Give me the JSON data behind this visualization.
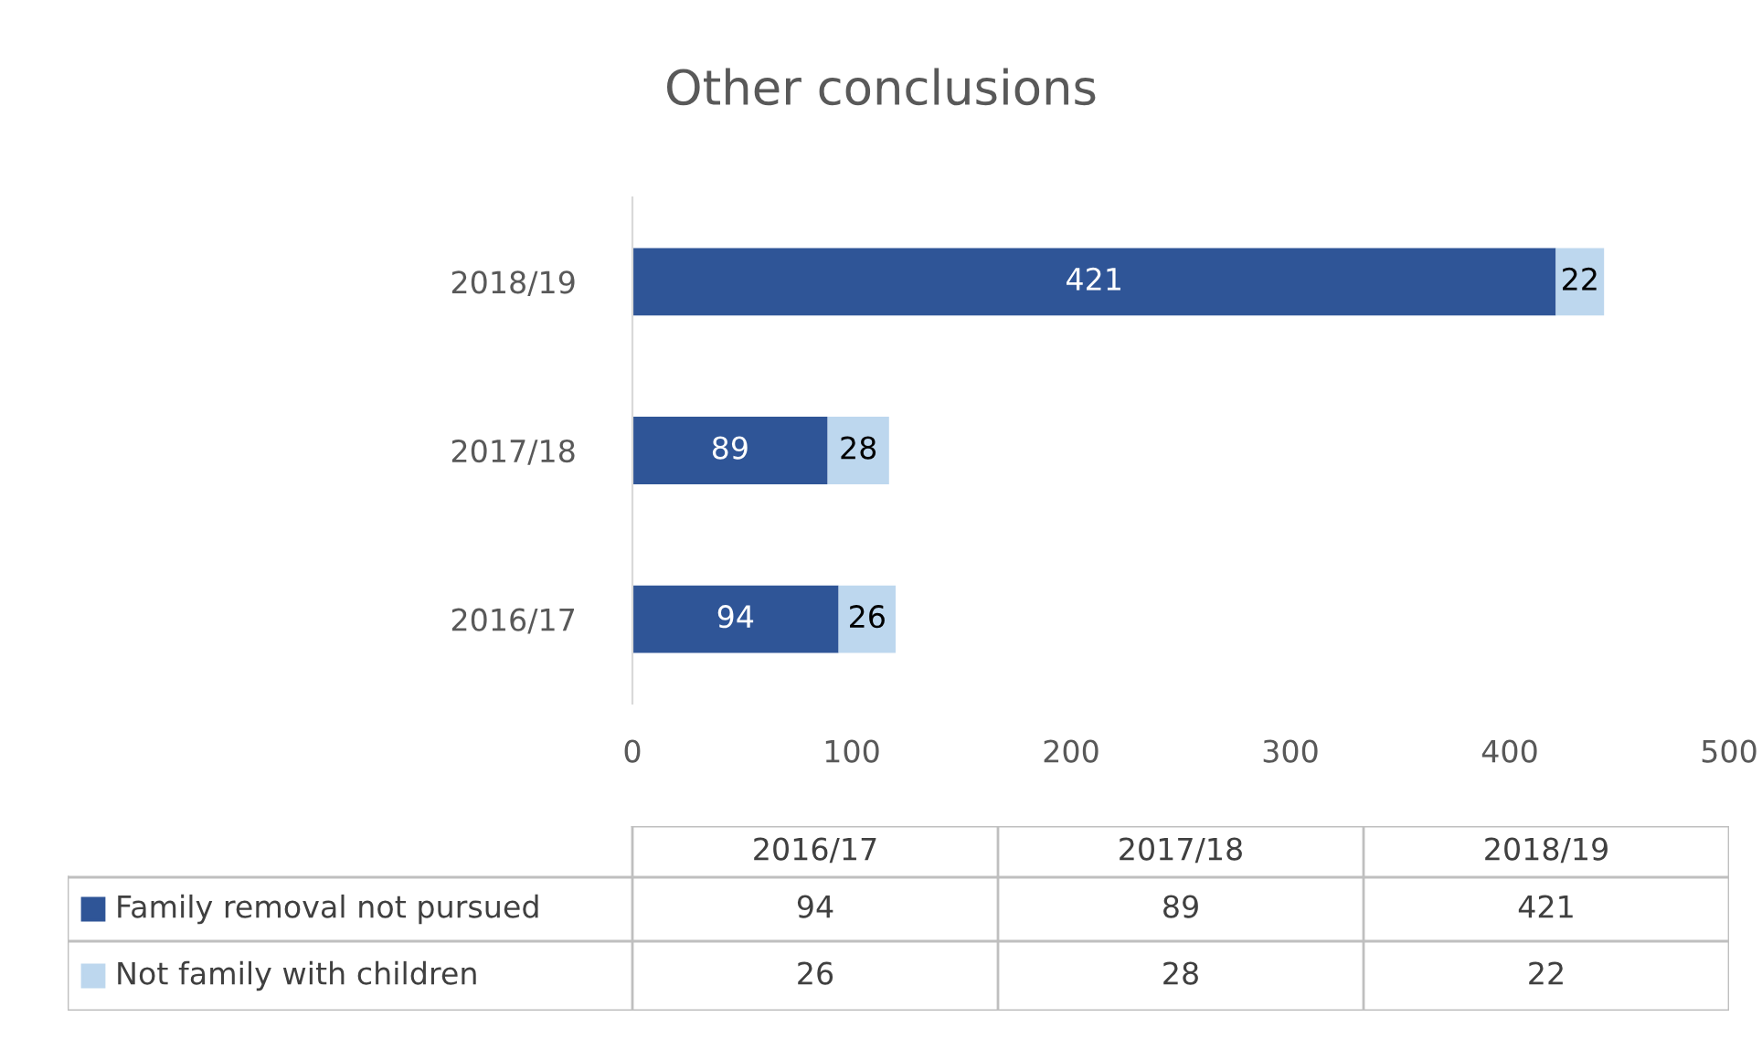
{
  "chart_data": {
    "type": "bar",
    "orientation": "horizontal",
    "stacked": true,
    "title": "Other conclusions",
    "categories": [
      "2018/19",
      "2017/18",
      "2016/17"
    ],
    "series": [
      {
        "name": "Family removal not pursued",
        "color": "#2f5597",
        "values": [
          421,
          89,
          94
        ],
        "value_labels": [
          "421",
          "89",
          "94"
        ]
      },
      {
        "name": "Not family with children",
        "color": "#bdd7ee",
        "values": [
          22,
          28,
          26
        ],
        "value_labels": [
          "22",
          "28",
          "26"
        ]
      }
    ],
    "xlim": [
      0,
      500
    ],
    "xticks": [
      0,
      100,
      200,
      300,
      400,
      500
    ],
    "grid": false,
    "legend": "bottom"
  }
}
